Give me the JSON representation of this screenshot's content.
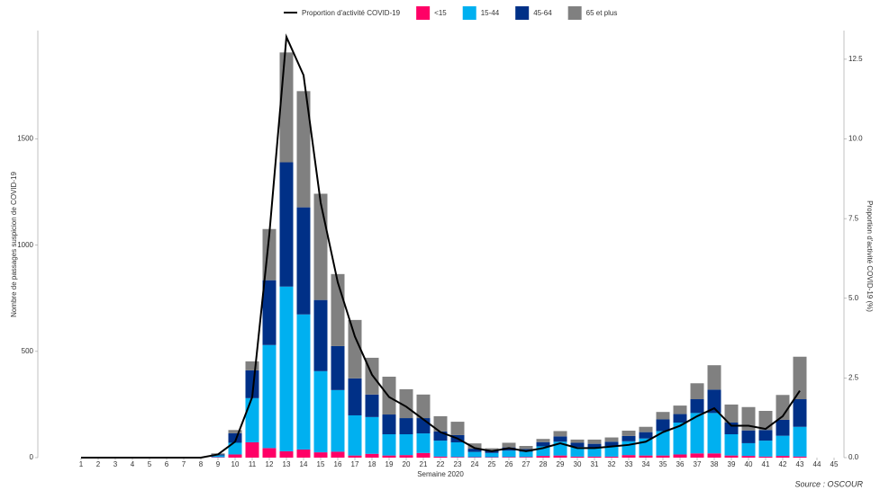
{
  "chart_data": {
    "type": "bar",
    "stacked": true,
    "x_label": "Semaine 2020",
    "y_label": "Nombre de passages suspicion de COVID-19",
    "y2_label": "Proportion d'activité COVID-19 (%)",
    "source": "Source : OSCOUR",
    "categories": [
      "1",
      "2",
      "3",
      "4",
      "5",
      "6",
      "7",
      "8",
      "9",
      "10",
      "11",
      "12",
      "13",
      "14",
      "15",
      "16",
      "17",
      "18",
      "19",
      "20",
      "21",
      "22",
      "23",
      "24",
      "25",
      "26",
      "27",
      "28",
      "29",
      "30",
      "31",
      "32",
      "33",
      "34",
      "35",
      "36",
      "37",
      "38",
      "39",
      "40",
      "41",
      "42",
      "43",
      "44",
      "45"
    ],
    "series": [
      {
        "name": "<15",
        "color": "#ff0066",
        "values": [
          0,
          0,
          0,
          0,
          0,
          0,
          0,
          0,
          2,
          15,
          72,
          45,
          30,
          38,
          25,
          28,
          10,
          18,
          10,
          12,
          22,
          5,
          3,
          2,
          2,
          3,
          3,
          8,
          10,
          5,
          5,
          5,
          12,
          10,
          10,
          15,
          20,
          20,
          10,
          8,
          5,
          8,
          5,
          null,
          null
        ]
      },
      {
        "name": "15-44",
        "color": "#00b0f0",
        "values": [
          0,
          0,
          0,
          0,
          0,
          0,
          0,
          0,
          8,
          55,
          208,
          485,
          775,
          636,
          382,
          290,
          189,
          173,
          100,
          98,
          92,
          75,
          69,
          25,
          20,
          30,
          25,
          45,
          65,
          45,
          40,
          50,
          65,
          80,
          115,
          150,
          190,
          190,
          100,
          60,
          75,
          95,
          140,
          null,
          null
        ]
      },
      {
        "name": "45-64",
        "color": "#003087",
        "values": [
          0,
          0,
          0,
          0,
          0,
          0,
          0,
          0,
          5,
          45,
          131,
          305,
          585,
          504,
          335,
          207,
          174,
          106,
          93,
          76,
          72,
          43,
          34,
          15,
          10,
          15,
          12,
          20,
          25,
          20,
          20,
          20,
          25,
          30,
          55,
          40,
          65,
          110,
          55,
          60,
          50,
          75,
          130,
          null,
          null
        ]
      },
      {
        "name": "65 et plus",
        "color": "#808080",
        "values": [
          0,
          0,
          0,
          0,
          0,
          0,
          0,
          0,
          5,
          15,
          42,
          241,
          517,
          547,
          500,
          339,
          275,
          173,
          178,
          136,
          111,
          72,
          63,
          25,
          12,
          22,
          15,
          15,
          25,
          15,
          20,
          20,
          25,
          25,
          35,
          40,
          75,
          115,
          85,
          110,
          90,
          117,
          200,
          null,
          null
        ]
      },
      {
        "name": "Proportion d'activité COVID-19",
        "color": "#000000",
        "type": "line",
        "axis": "y2",
        "values": [
          0,
          0,
          0,
          0,
          0,
          0,
          0,
          0,
          0.1,
          0.5,
          1.9,
          7.0,
          13.2,
          12.0,
          8.0,
          5.5,
          3.8,
          2.6,
          1.9,
          1.6,
          1.2,
          0.8,
          0.6,
          0.3,
          0.2,
          0.3,
          0.2,
          0.3,
          0.45,
          0.3,
          0.3,
          0.35,
          0.4,
          0.5,
          0.8,
          1.0,
          1.3,
          1.55,
          1.0,
          1.0,
          0.9,
          1.3,
          2.1,
          null,
          null
        ]
      }
    ],
    "ylim": [
      0,
      2010
    ],
    "yticks": [
      0,
      500,
      1000,
      1500
    ],
    "y2lim": [
      0,
      13.4
    ],
    "y2ticks": [
      {
        "value": 0,
        "label": "0.0"
      },
      2.5,
      {
        "value": 5,
        "label": "5.0"
      },
      7.5,
      {
        "value": 10,
        "label": "10.0"
      },
      12.5
    ],
    "legend": "top",
    "grid": false
  }
}
